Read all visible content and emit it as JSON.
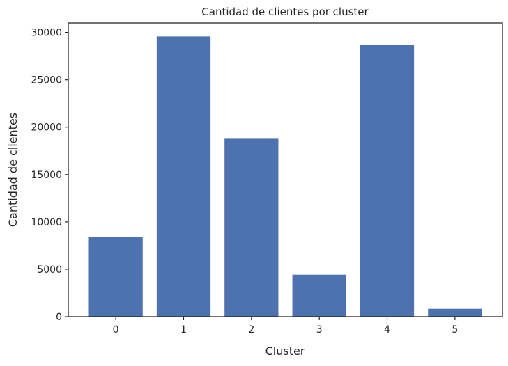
{
  "chart_data": {
    "type": "bar",
    "title": "Cantidad de clientes por cluster",
    "xlabel": "Cluster",
    "ylabel": "Cantidad de clientes",
    "categories": [
      "0",
      "1",
      "2",
      "3",
      "4",
      "5"
    ],
    "values": [
      8400,
      29600,
      18800,
      4450,
      28700,
      850
    ],
    "ylim": [
      0,
      31000
    ],
    "yticks": [
      0,
      5000,
      10000,
      15000,
      20000,
      25000,
      30000
    ],
    "bar_color": "#4c72b0",
    "grid": false,
    "legend": "none"
  }
}
